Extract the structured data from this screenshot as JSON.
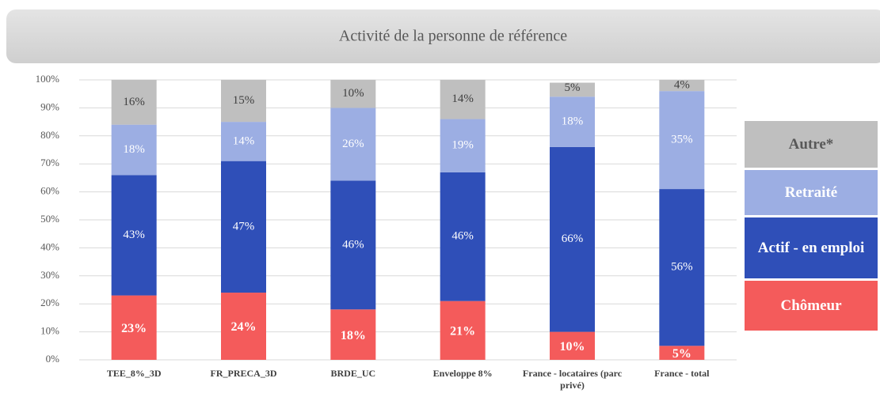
{
  "chart_data": {
    "type": "stacked_bar",
    "title": "Activité de la personne de référence",
    "categories": [
      "TEE_8%_3D",
      "FR_PRECA_3D",
      "BRDE_UC",
      "Enveloppe 8%",
      "France - locataires (parc privé)",
      "France - total"
    ],
    "series": [
      {
        "name": "Chômeur",
        "color": "#f45b5b",
        "label_color": "#ffffff",
        "values": [
          23,
          24,
          18,
          21,
          10,
          5
        ],
        "value_labels": [
          "23%",
          "24%",
          "18%",
          "21%",
          "10%",
          "5%"
        ]
      },
      {
        "name": "Actif - en emploi",
        "color": "#2f4fb8",
        "label_color": "#ffffff",
        "values": [
          43,
          47,
          46,
          46,
          66,
          56
        ],
        "value_labels": [
          "43%",
          "47%",
          "46%",
          "46%",
          "66%",
          "56%"
        ]
      },
      {
        "name": "Retraité",
        "color": "#9caee3",
        "label_color": "#ffffff",
        "values": [
          18,
          14,
          26,
          19,
          18,
          35
        ],
        "value_labels": [
          "18%",
          "14%",
          "26%",
          "19%",
          "18%",
          "35%"
        ]
      },
      {
        "name": "Autre*",
        "color": "#bfbfbf",
        "label_color": "#404040",
        "values": [
          16,
          15,
          10,
          14,
          5,
          4
        ],
        "value_labels": [
          "16%",
          "15%",
          "10%",
          "14%",
          "5%",
          "4%"
        ]
      }
    ],
    "ylim": [
      0,
      100
    ],
    "yticks": [
      {
        "value": 0,
        "label": "0%"
      },
      {
        "value": 10,
        "label": "10%"
      },
      {
        "value": 20,
        "label": "20%"
      },
      {
        "value": 30,
        "label": "30%"
      },
      {
        "value": 40,
        "label": "40%"
      },
      {
        "value": 50,
        "label": "50%"
      },
      {
        "value": 60,
        "label": "60%"
      },
      {
        "value": 70,
        "label": "70%"
      },
      {
        "value": 80,
        "label": "80%"
      },
      {
        "value": 90,
        "label": "90%"
      },
      {
        "value": 100,
        "label": "100%"
      }
    ],
    "grid": true
  }
}
